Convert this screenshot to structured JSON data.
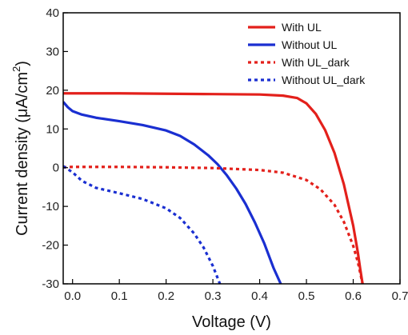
{
  "chart_data": {
    "type": "line",
    "xlabel": "Voltage (V)",
    "ylabel": "Current density (μA/cm",
    "ylabel_superscript": "2",
    "ylabel_suffix": ")",
    "xlim": [
      -0.02,
      0.7
    ],
    "ylim": [
      -30,
      40
    ],
    "x_ticks": [
      0.0,
      0.1,
      0.2,
      0.3,
      0.4,
      0.5,
      0.6,
      0.7
    ],
    "x_tick_labels": [
      "0.0",
      "0.1",
      "0.2",
      "0.3",
      "0.4",
      "0.5",
      "0.6",
      "0.7"
    ],
    "y_ticks": [
      -30,
      -20,
      -10,
      0,
      10,
      20,
      30,
      40
    ],
    "y_tick_labels": [
      "-30",
      "-20",
      "-10",
      "0",
      "10",
      "20",
      "30",
      "40"
    ],
    "grid": false,
    "legend_position": "top-right",
    "series": [
      {
        "name": "With UL",
        "color": "#e3201b",
        "dash": "solid",
        "points": [
          [
            -0.02,
            19.2
          ],
          [
            0.0,
            19.2
          ],
          [
            0.1,
            19.2
          ],
          [
            0.2,
            19.1
          ],
          [
            0.3,
            19.0
          ],
          [
            0.4,
            18.9
          ],
          [
            0.45,
            18.6
          ],
          [
            0.48,
            18.0
          ],
          [
            0.5,
            16.6
          ],
          [
            0.52,
            13.9
          ],
          [
            0.54,
            9.7
          ],
          [
            0.56,
            3.8
          ],
          [
            0.58,
            -4.3
          ],
          [
            0.6,
            -15.0
          ],
          [
            0.61,
            -22.0
          ],
          [
            0.615,
            -26.2
          ],
          [
            0.62,
            -30.0
          ]
        ]
      },
      {
        "name": "Without UL",
        "color": "#1a2fd1",
        "dash": "solid",
        "points": [
          [
            -0.02,
            17.0
          ],
          [
            -0.01,
            15.6
          ],
          [
            0.0,
            14.6
          ],
          [
            0.02,
            13.7
          ],
          [
            0.05,
            12.9
          ],
          [
            0.1,
            12.0
          ],
          [
            0.15,
            11.0
          ],
          [
            0.2,
            9.6
          ],
          [
            0.23,
            8.2
          ],
          [
            0.26,
            6.0
          ],
          [
            0.29,
            3.2
          ],
          [
            0.31,
            0.9
          ],
          [
            0.33,
            -2.0
          ],
          [
            0.35,
            -5.4
          ],
          [
            0.37,
            -9.4
          ],
          [
            0.39,
            -14.2
          ],
          [
            0.41,
            -19.6
          ],
          [
            0.43,
            -26.0
          ],
          [
            0.445,
            -30.0
          ]
        ]
      },
      {
        "name": "With UL_dark",
        "color": "#e3201b",
        "dash": "dotted",
        "points": [
          [
            -0.02,
            0.1
          ],
          [
            0.0,
            0.2
          ],
          [
            0.1,
            0.2
          ],
          [
            0.2,
            0.1
          ],
          [
            0.3,
            -0.1
          ],
          [
            0.4,
            -0.6
          ],
          [
            0.45,
            -1.3
          ],
          [
            0.5,
            -3.2
          ],
          [
            0.53,
            -5.6
          ],
          [
            0.56,
            -9.6
          ],
          [
            0.58,
            -14.0
          ],
          [
            0.6,
            -20.2
          ],
          [
            0.61,
            -24.4
          ],
          [
            0.62,
            -30.0
          ]
        ]
      },
      {
        "name": "Without UL_dark",
        "color": "#1a2fd1",
        "dash": "dotted",
        "points": [
          [
            -0.02,
            0.4
          ],
          [
            0.0,
            -1.2
          ],
          [
            0.02,
            -3.4
          ],
          [
            0.05,
            -5.2
          ],
          [
            0.1,
            -6.6
          ],
          [
            0.15,
            -8.1
          ],
          [
            0.2,
            -10.5
          ],
          [
            0.23,
            -13.0
          ],
          [
            0.26,
            -17.0
          ],
          [
            0.28,
            -20.6
          ],
          [
            0.3,
            -25.4
          ],
          [
            0.315,
            -30.0
          ]
        ]
      }
    ]
  }
}
